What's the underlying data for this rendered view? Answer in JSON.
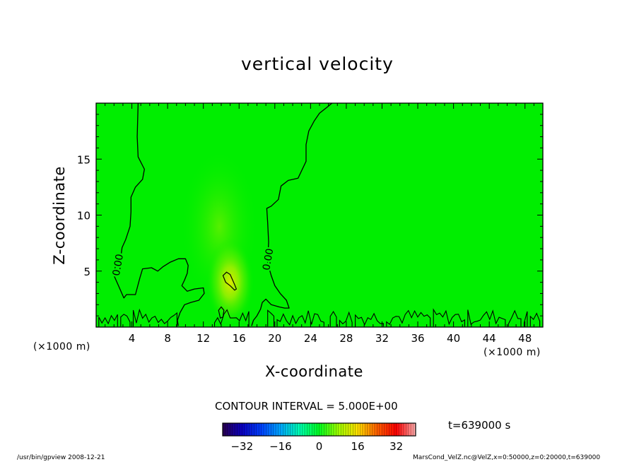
{
  "chart_data": {
    "type": "heatmap",
    "title": "vertical velocity",
    "xlabel": "X-coordinate",
    "ylabel": "Z-coordinate",
    "x_unit": "(×1000 m)",
    "y_unit": "(×1000 m)",
    "xlim": [
      0,
      50
    ],
    "ylim": [
      0,
      20
    ],
    "x_ticks": [
      4,
      8,
      12,
      16,
      20,
      24,
      28,
      32,
      36,
      40,
      44,
      48
    ],
    "y_ticks": [
      5,
      10,
      15
    ],
    "contour_interval_text": "CONTOUR INTERVAL = 5.000E+00",
    "contour_labels": [
      {
        "text": "0.00",
        "x": 2.8,
        "y": 5.5
      },
      {
        "text": "0.00",
        "x": 19.6,
        "y": 6.0
      }
    ],
    "zero_contours": [
      [
        [
          4.7,
          20
        ],
        [
          4.6,
          17
        ],
        [
          4.7,
          15.2
        ],
        [
          5.4,
          14.1
        ],
        [
          5.2,
          13.2
        ],
        [
          4.4,
          12.5
        ],
        [
          3.9,
          11.6
        ],
        [
          3.9,
          10.3
        ],
        [
          3.8,
          9.0
        ],
        [
          3.3,
          7.8
        ],
        [
          2.9,
          7.1
        ],
        [
          2.8,
          6.5
        ],
        [
          2.3,
          6.0
        ],
        [
          2.1,
          5.2
        ],
        [
          2.0,
          4.6
        ],
        [
          2.5,
          3.7
        ],
        [
          3.1,
          2.6
        ],
        [
          3.4,
          2.9
        ],
        [
          4.4,
          2.9
        ],
        [
          4.9,
          4.4
        ],
        [
          5.2,
          5.2
        ],
        [
          6.2,
          5.3
        ],
        [
          6.9,
          5.0
        ],
        [
          7.5,
          5.4
        ],
        [
          8.3,
          5.8
        ],
        [
          9.2,
          6.1
        ],
        [
          10.0,
          6.1
        ],
        [
          10.3,
          5.5
        ],
        [
          10.2,
          4.8
        ],
        [
          9.9,
          4.2
        ],
        [
          9.6,
          3.7
        ],
        [
          10.2,
          3.2
        ],
        [
          11.0,
          3.4
        ],
        [
          12.0,
          3.5
        ],
        [
          12.1,
          3.0
        ],
        [
          11.5,
          2.4
        ],
        [
          10.6,
          2.2
        ],
        [
          9.9,
          2.0
        ],
        [
          9.4,
          1.3
        ],
        [
          9.1,
          0.6
        ],
        [
          9.2,
          0.1
        ]
      ],
      [
        [
          26.4,
          20
        ],
        [
          25.8,
          19.6
        ],
        [
          25.0,
          19.1
        ],
        [
          24.4,
          18.4
        ],
        [
          23.8,
          17.5
        ],
        [
          23.5,
          16.3
        ],
        [
          23.5,
          14.8
        ],
        [
          22.6,
          13.3
        ],
        [
          21.5,
          13.1
        ],
        [
          20.7,
          12.6
        ],
        [
          20.4,
          11.4
        ],
        [
          19.6,
          10.8
        ],
        [
          19.1,
          10.6
        ],
        [
          19.2,
          9.3
        ],
        [
          19.3,
          7.6
        ],
        [
          19.2,
          5.7
        ],
        [
          19.6,
          4.6
        ],
        [
          20.0,
          3.7
        ],
        [
          20.6,
          3.0
        ],
        [
          21.3,
          2.4
        ],
        [
          21.6,
          1.7
        ],
        [
          21.1,
          1.7
        ],
        [
          20.5,
          1.8
        ],
        [
          19.6,
          2.0
        ],
        [
          19.0,
          2.5
        ],
        [
          18.6,
          2.2
        ],
        [
          18.4,
          1.6
        ],
        [
          18.0,
          1.0
        ],
        [
          17.6,
          0.6
        ],
        [
          17.4,
          0.1
        ]
      ]
    ],
    "closed_contours": [
      [
        [
          14.2,
          4.6
        ],
        [
          14.6,
          4.9
        ],
        [
          15.0,
          4.7
        ],
        [
          15.5,
          3.8
        ],
        [
          15.7,
          3.4
        ],
        [
          15.5,
          3.3
        ],
        [
          15.0,
          3.7
        ],
        [
          14.5,
          4.0
        ],
        [
          14.2,
          4.6
        ]
      ],
      [
        [
          13.7,
          1.5
        ],
        [
          14.0,
          1.8
        ],
        [
          14.3,
          1.5
        ],
        [
          14.2,
          0.9
        ],
        [
          13.9,
          0.8
        ],
        [
          13.7,
          1.5
        ]
      ]
    ],
    "color_scale": {
      "min": -40,
      "max": 40,
      "step": 1,
      "ticks": [
        -32,
        -16,
        0,
        16,
        32
      ],
      "colormap": [
        "#2a0050",
        "#0a00c0",
        "#0040ff",
        "#00a8ff",
        "#00ffb0",
        "#00ff20",
        "#a0ff00",
        "#ffe000",
        "#ff6000",
        "#ff0000",
        "#ffb0b0"
      ]
    },
    "field": {
      "background": "#00ee00",
      "anomaly_center": [
        15.0,
        4.0
      ],
      "anomaly_color": "#e8e800"
    },
    "time_label": "t=639000 s"
  },
  "footer": {
    "left": "/usr/bin/gpview 2008-12-21",
    "right": "MarsCond_VelZ.nc@VelZ,x=0:50000,z=0:20000,t=639000"
  }
}
